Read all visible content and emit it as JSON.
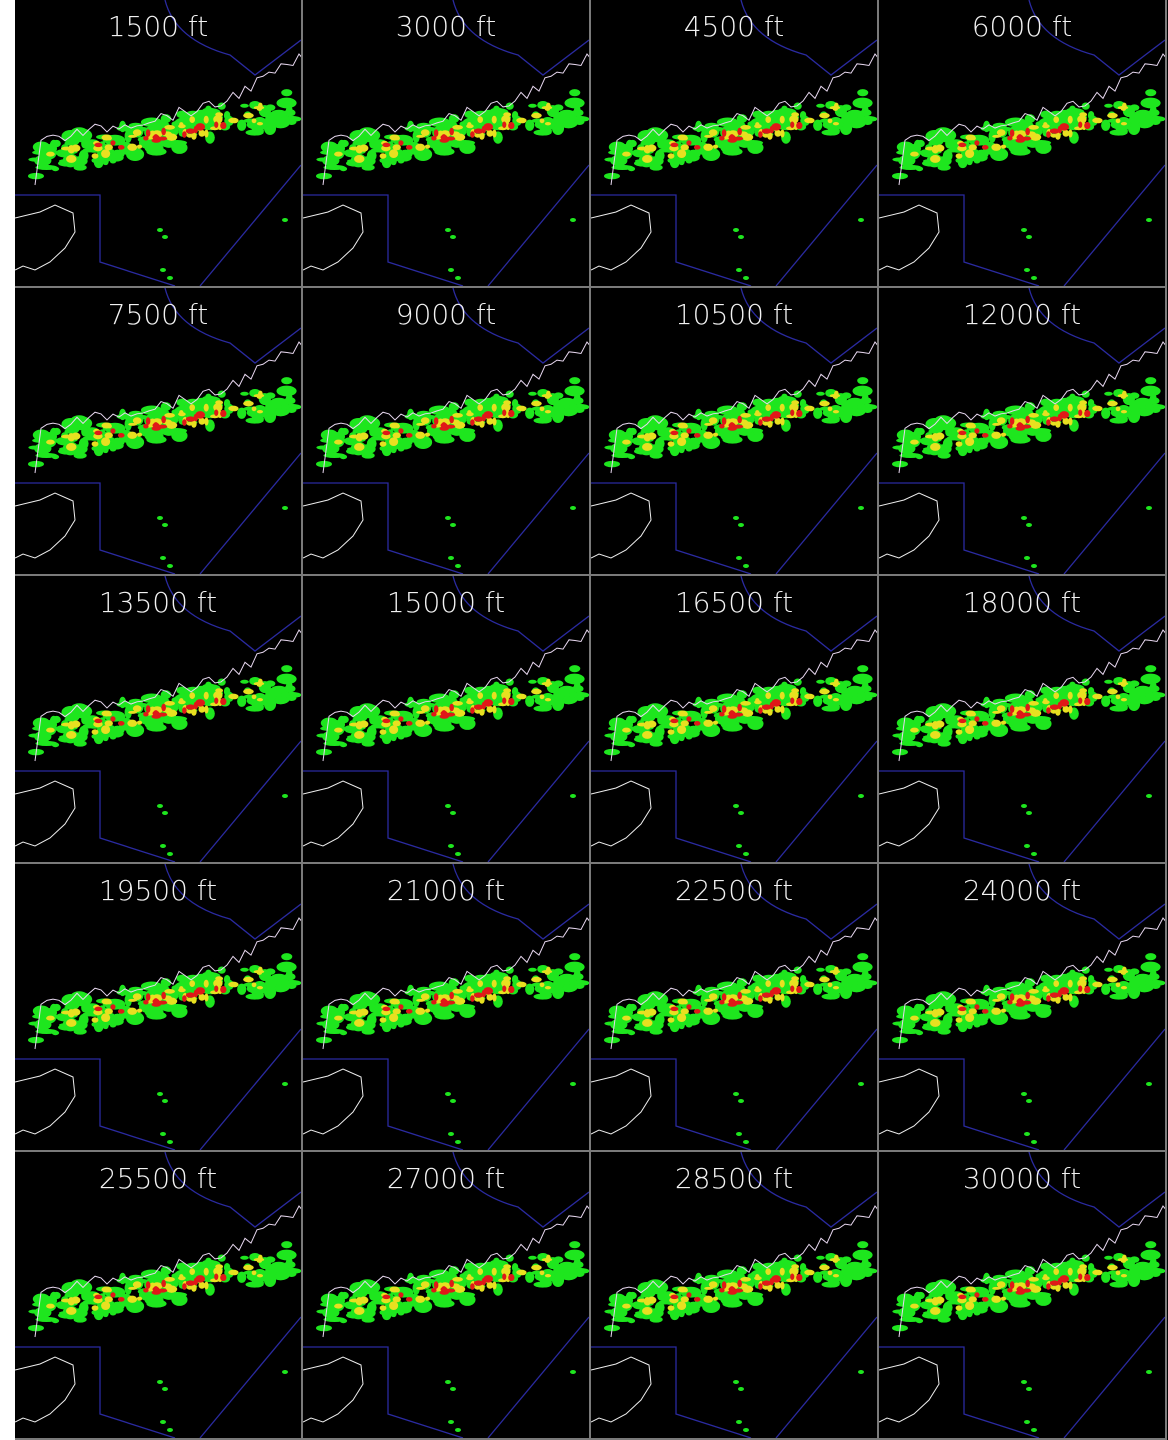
{
  "panels": [
    "1500 ft",
    "3000 ft",
    "4500 ft",
    "6000 ft",
    "7500 ft",
    "9000 ft",
    "10500 ft",
    "12000 ft",
    "13500 ft",
    "15000 ft",
    "16500 ft",
    "18000 ft",
    "19500 ft",
    "21000 ft",
    "22500 ft",
    "24000 ft",
    "25500 ft",
    "27000 ft",
    "28500 ft",
    "30000 ft"
  ]
}
